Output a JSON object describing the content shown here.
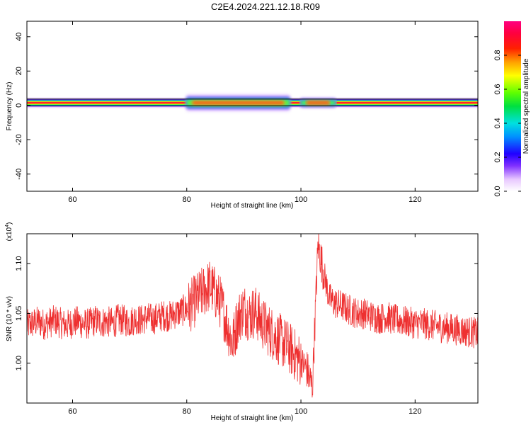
{
  "title": "C2E4.2024.221.12.18.R09",
  "chart_data": [
    {
      "type": "heatmap",
      "xlabel": "Height of straight line (km)",
      "ylabel": "Frequency (Hz)",
      "xlim": [
        52,
        131
      ],
      "ylim": [
        -50,
        49
      ],
      "xticks": [
        "60",
        "80",
        "100",
        "120"
      ],
      "xtick_values": [
        60,
        80,
        100,
        120
      ],
      "yticks": [
        "40",
        "20",
        "0",
        "-20",
        "-40"
      ],
      "ytick_values": [
        40,
        20,
        0,
        -20,
        -40
      ],
      "colorbar": {
        "label": "Normalized spectral amplitude",
        "range": [
          0,
          1
        ],
        "ticks": [
          "0.0",
          "0.2",
          "0.4",
          "0.6",
          "0.8"
        ],
        "tick_values": [
          0.0,
          0.2,
          0.4,
          0.6,
          0.8
        ]
      },
      "center_frequency_hz": 1.5,
      "broad_regions": [
        {
          "x_start_km": 80,
          "x_end_km": 98,
          "half_width_hz": 5
        },
        {
          "x_start_km": 100,
          "x_end_km": 106,
          "half_width_hz": 3
        }
      ]
    },
    {
      "type": "line",
      "xlabel": "Height of straight line (km)",
      "ylabel": "SNR (10 * v/v)",
      "y_multiplier": "(x10",
      "y_multiplier_exp": "4",
      "y_multiplier_close": ")",
      "xlim": [
        52,
        131
      ],
      "ylim": [
        0.96,
        1.13
      ],
      "xticks": [
        "60",
        "80",
        "100",
        "120"
      ],
      "xtick_values": [
        60,
        80,
        100,
        120
      ],
      "yticks": [
        "1.10",
        "1.05",
        "1.00"
      ],
      "ytick_values": [
        1.1,
        1.05,
        1.0
      ],
      "series": [
        {
          "name": "SNR",
          "color": "#ee3030",
          "x": [
            52,
            53,
            54,
            55,
            56,
            57,
            58,
            59,
            60,
            61,
            62,
            63,
            64,
            65,
            66,
            67,
            68,
            69,
            70,
            71,
            72,
            73,
            74,
            75,
            76,
            77,
            78,
            79,
            80,
            81,
            82,
            83,
            84,
            85,
            86,
            87,
            88,
            89,
            90,
            91,
            92,
            93,
            94,
            95,
            96,
            97,
            98,
            99,
            100,
            101,
            102,
            103,
            104,
            105,
            106,
            107,
            108,
            109,
            110,
            111,
            112,
            113,
            114,
            115,
            116,
            117,
            118,
            119,
            120,
            121,
            122,
            123,
            124,
            125,
            126,
            127,
            128,
            129,
            130,
            131
          ],
          "y": [
            1.038,
            1.04,
            1.042,
            1.039,
            1.041,
            1.043,
            1.04,
            1.038,
            1.041,
            1.042,
            1.039,
            1.04,
            1.043,
            1.041,
            1.042,
            1.04,
            1.044,
            1.043,
            1.041,
            1.045,
            1.043,
            1.046,
            1.044,
            1.046,
            1.048,
            1.047,
            1.05,
            1.052,
            1.055,
            1.06,
            1.066,
            1.072,
            1.078,
            1.07,
            1.06,
            1.04,
            1.02,
            1.045,
            1.055,
            1.048,
            1.052,
            1.042,
            1.035,
            1.03,
            1.025,
            1.02,
            1.015,
            1.008,
            1.002,
            0.995,
            0.975,
            1.12,
            1.09,
            1.065,
            1.06,
            1.058,
            1.055,
            1.052,
            1.05,
            1.05,
            1.048,
            1.046,
            1.045,
            1.047,
            1.044,
            1.043,
            1.042,
            1.041,
            1.04,
            1.04,
            1.039,
            1.038,
            1.037,
            1.036,
            1.035,
            1.034,
            1.033,
            1.032,
            1.031,
            1.03
          ],
          "noise_amplitude": 0.016
        }
      ]
    }
  ]
}
